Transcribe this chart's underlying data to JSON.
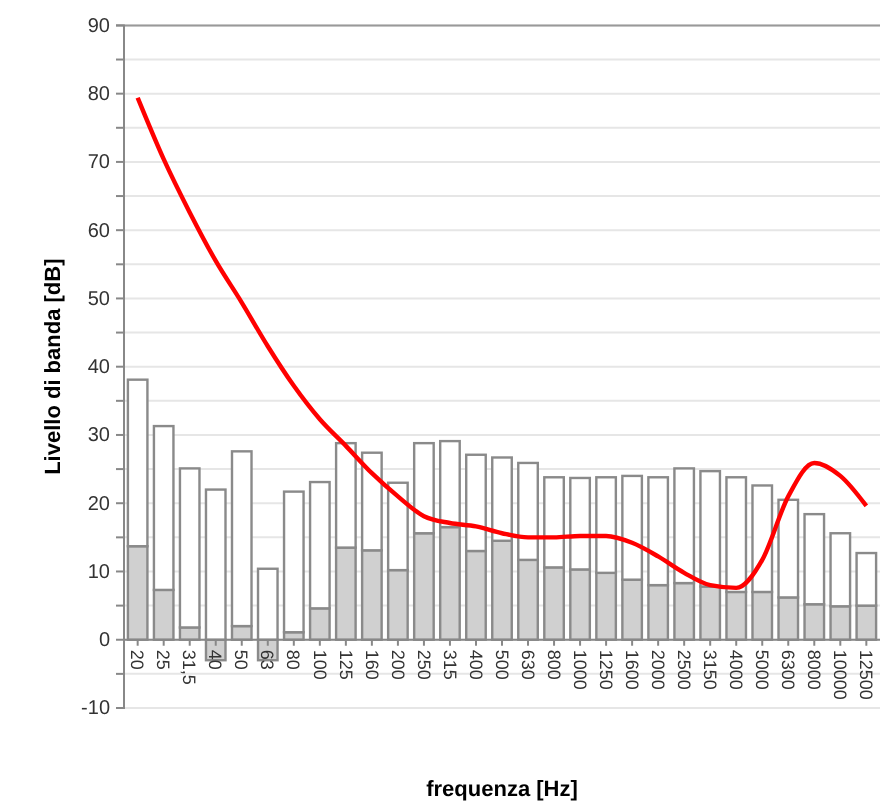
{
  "chart_data": {
    "type": "bar",
    "xlabel": "frequenza [Hz]",
    "ylabel": "Livello di banda [dB]",
    "categories": [
      "20",
      "25",
      "31,5",
      "40",
      "50",
      "63",
      "80",
      "100",
      "125",
      "160",
      "200",
      "250",
      "315",
      "400",
      "500",
      "630",
      "800",
      "1000",
      "1250",
      "1600",
      "2000",
      "2500",
      "3150",
      "4000",
      "5000",
      "6300",
      "8000",
      "10000",
      "12500"
    ],
    "series": [
      {
        "color": "#d0d0d0",
        "values": [
          13.7,
          7.3,
          1.8,
          -3,
          2,
          -3,
          1.1,
          4.6,
          13.5,
          13.1,
          10.2,
          15.6,
          16.5,
          13,
          14.5,
          11.7,
          10.6,
          10.3,
          9.8,
          8.8,
          8,
          8.3,
          7.8,
          7,
          7,
          6.2,
          5.2,
          4.9,
          5
        ]
      },
      {
        "color": "#ffffff",
        "values": [
          24.4,
          24,
          23.3,
          22,
          25.6,
          10.4,
          20.6,
          18.5,
          15.3,
          14.3,
          12.8,
          13.2,
          12.6,
          14.1,
          12.2,
          14.2,
          13.2,
          13.4,
          14,
          15.2,
          15.8,
          16.8,
          16.9,
          16.8,
          15.6,
          14.3,
          13.2,
          10.7,
          7.7
        ]
      },
      {
        "type": "line",
        "color": "#ff0000",
        "values": [
          79.4,
          70.4,
          62.6,
          55.5,
          49.4,
          43,
          37.2,
          32.3,
          28.4,
          24.4,
          21,
          18.1,
          17.1,
          16.6,
          15.6,
          15,
          15,
          15.2,
          15.2,
          14.2,
          12.2,
          9.8,
          8,
          7.6,
          11.7,
          21,
          25.9,
          24,
          19.6
        ]
      }
    ],
    "ylim": [
      -10,
      90
    ],
    "yticks": [
      -10,
      {
        "value": -5,
        "label": null
      },
      0,
      {
        "value": 5,
        "label": null
      },
      10,
      {
        "value": 15,
        "label": null
      },
      20,
      {
        "value": 25,
        "label": null
      },
      30,
      {
        "value": 35,
        "label": null
      },
      40,
      {
        "value": 45,
        "label": null
      },
      50,
      {
        "value": 55,
        "label": null
      },
      60,
      {
        "value": 65,
        "label": null
      },
      70,
      {
        "value": 75,
        "label": null
      },
      80,
      {
        "value": 85,
        "label": null
      },
      90
    ],
    "stacked": true,
    "grid": "y",
    "marker": "none",
    "line_style": "solid"
  }
}
